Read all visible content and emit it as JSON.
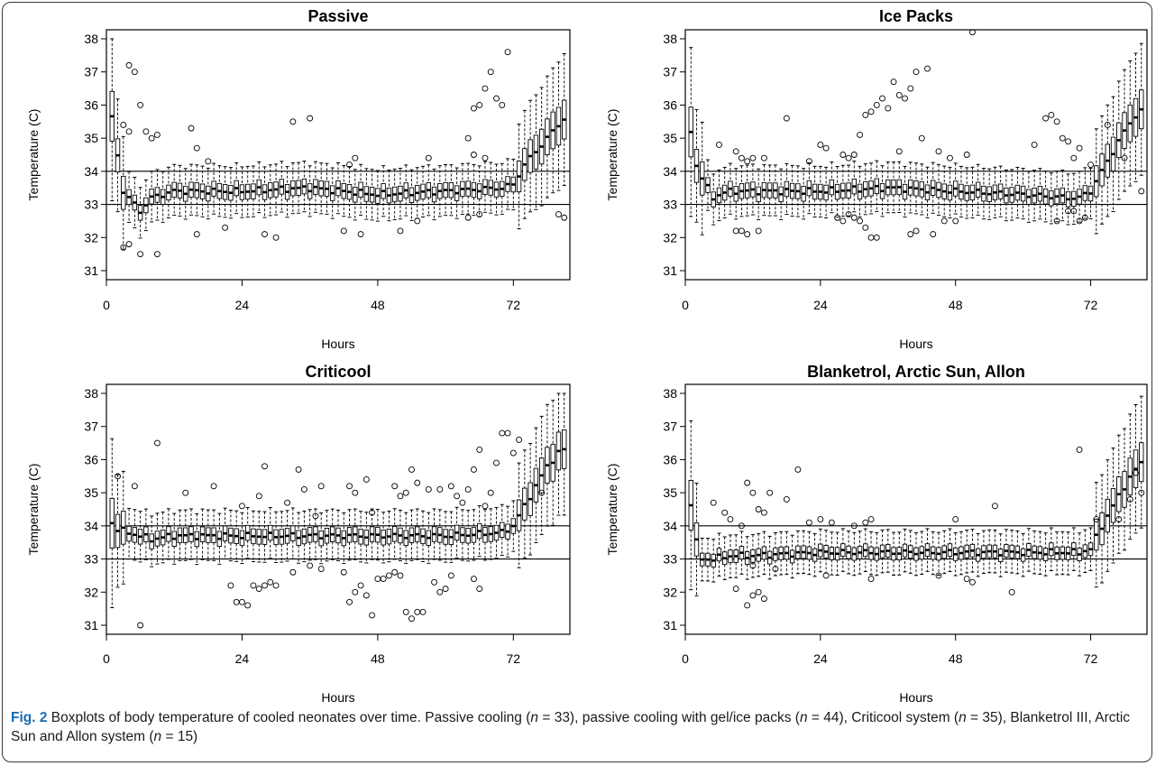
{
  "figure": {
    "fig_label": "Fig. 2",
    "caption_parts": [
      " Boxplots of body temperature of cooled neonates over time. Passive cooling (",
      "n",
      " = 33), passive cooling with gel/ice packs (",
      "n",
      " = 44), Criticool system (",
      "n",
      " = 35), Blanketrol III, Arctic Sun and Allon system (",
      "n",
      " = 15)"
    ]
  },
  "chart_data": [
    {
      "type": "box",
      "title": "Passive",
      "xlabel": "Hours",
      "ylabel": "Temperature (C)",
      "xlim": [
        0,
        82
      ],
      "ylim": [
        31,
        38
      ],
      "xticks": [
        0,
        24,
        48,
        72
      ],
      "yticks": [
        31,
        32,
        33,
        34,
        35,
        36,
        37,
        38
      ],
      "reference_lines": [
        33,
        34
      ],
      "hours": "1-81",
      "median_key": [
        [
          1,
          35.6
        ],
        [
          2,
          34.5
        ],
        [
          3,
          33.4
        ],
        [
          4,
          33.2
        ],
        [
          5,
          33.0
        ],
        [
          6,
          32.8
        ],
        [
          8,
          33.2
        ],
        [
          12,
          33.4
        ],
        [
          24,
          33.4
        ],
        [
          36,
          33.5
        ],
        [
          48,
          33.3
        ],
        [
          60,
          33.4
        ],
        [
          70,
          33.5
        ],
        [
          72,
          33.6
        ],
        [
          74,
          34.2
        ],
        [
          76,
          34.6
        ],
        [
          78,
          35.0
        ],
        [
          80,
          35.4
        ],
        [
          81,
          35.6
        ]
      ],
      "outliers": [
        [
          3,
          35.4
        ],
        [
          4,
          37.2
        ],
        [
          5,
          37.0
        ],
        [
          6,
          36.0
        ],
        [
          4,
          35.2
        ],
        [
          7,
          35.2
        ],
        [
          8,
          35.0
        ],
        [
          9,
          35.1
        ],
        [
          3,
          31.7
        ],
        [
          4,
          31.8
        ],
        [
          6,
          31.5
        ],
        [
          9,
          31.5
        ],
        [
          15,
          35.3
        ],
        [
          16,
          34.7
        ],
        [
          18,
          34.3
        ],
        [
          16,
          32.1
        ],
        [
          21,
          32.3
        ],
        [
          28,
          32.1
        ],
        [
          30,
          32.0
        ],
        [
          33,
          35.5
        ],
        [
          36,
          35.6
        ],
        [
          43,
          34.2
        ],
        [
          44,
          34.4
        ],
        [
          42,
          32.2
        ],
        [
          45,
          32.1
        ],
        [
          52,
          32.2
        ],
        [
          55,
          32.5
        ],
        [
          57,
          34.4
        ],
        [
          64,
          35.0
        ],
        [
          65,
          35.9
        ],
        [
          66,
          36.0
        ],
        [
          67,
          36.5
        ],
        [
          68,
          37.0
        ],
        [
          69,
          36.2
        ],
        [
          70,
          36.0
        ],
        [
          71,
          37.6
        ],
        [
          65,
          34.5
        ],
        [
          67,
          34.4
        ],
        [
          64,
          32.6
        ],
        [
          66,
          32.7
        ],
        [
          80,
          32.7
        ],
        [
          81,
          32.6
        ]
      ]
    },
    {
      "type": "box",
      "title": "Ice Packs",
      "xlabel": "Hours",
      "ylabel": "Temperature (C)",
      "xlim": [
        0,
        82
      ],
      "ylim": [
        31,
        38
      ],
      "xticks": [
        0,
        24,
        48,
        72
      ],
      "yticks": [
        31,
        32,
        33,
        34,
        35,
        36,
        37,
        38
      ],
      "reference_lines": [
        33,
        34
      ],
      "hours": "1-81",
      "median_key": [
        [
          1,
          35.2
        ],
        [
          2,
          34.2
        ],
        [
          3,
          33.8
        ],
        [
          4,
          33.5
        ],
        [
          5,
          33.2
        ],
        [
          6,
          33.3
        ],
        [
          8,
          33.4
        ],
        [
          12,
          33.4
        ],
        [
          24,
          33.4
        ],
        [
          36,
          33.5
        ],
        [
          48,
          33.4
        ],
        [
          60,
          33.3
        ],
        [
          68,
          33.2
        ],
        [
          70,
          33.2
        ],
        [
          72,
          33.4
        ],
        [
          74,
          34.0
        ],
        [
          76,
          34.6
        ],
        [
          78,
          35.2
        ],
        [
          80,
          35.7
        ],
        [
          81,
          35.8
        ]
      ],
      "outliers": [
        [
          6,
          34.8
        ],
        [
          9,
          34.6
        ],
        [
          10,
          34.4
        ],
        [
          11,
          34.3
        ],
        [
          12,
          34.4
        ],
        [
          14,
          34.4
        ],
        [
          9,
          32.2
        ],
        [
          10,
          32.2
        ],
        [
          11,
          32.1
        ],
        [
          13,
          32.2
        ],
        [
          18,
          35.6
        ],
        [
          24,
          34.8
        ],
        [
          25,
          34.7
        ],
        [
          22,
          34.3
        ],
        [
          28,
          34.5
        ],
        [
          29,
          34.4
        ],
        [
          30,
          34.5
        ],
        [
          27,
          32.6
        ],
        [
          28,
          32.5
        ],
        [
          29,
          32.7
        ],
        [
          30,
          32.6
        ],
        [
          31,
          32.5
        ],
        [
          32,
          32.3
        ],
        [
          33,
          32.0
        ],
        [
          34,
          32.0
        ],
        [
          31,
          35.1
        ],
        [
          32,
          35.7
        ],
        [
          33,
          35.8
        ],
        [
          34,
          36.0
        ],
        [
          35,
          36.2
        ],
        [
          36,
          35.9
        ],
        [
          37,
          36.7
        ],
        [
          38,
          36.3
        ],
        [
          39,
          36.2
        ],
        [
          40,
          36.5
        ],
        [
          41,
          37.0
        ],
        [
          43,
          37.1
        ],
        [
          38,
          34.6
        ],
        [
          42,
          35.0
        ],
        [
          40,
          32.1
        ],
        [
          41,
          32.2
        ],
        [
          44,
          32.1
        ],
        [
          46,
          32.5
        ],
        [
          48,
          32.5
        ],
        [
          51,
          38.2
        ],
        [
          47,
          34.4
        ],
        [
          50,
          34.5
        ],
        [
          45,
          34.6
        ],
        [
          62,
          34.8
        ],
        [
          64,
          35.6
        ],
        [
          65,
          35.7
        ],
        [
          66,
          35.5
        ],
        [
          67,
          35.0
        ],
        [
          68,
          34.9
        ],
        [
          69,
          34.4
        ],
        [
          70,
          34.7
        ],
        [
          66,
          32.5
        ],
        [
          72,
          34.2
        ],
        [
          75,
          35.4
        ],
        [
          78,
          34.4
        ],
        [
          81,
          33.4
        ],
        [
          68,
          32.8
        ],
        [
          69,
          32.8
        ],
        [
          70,
          32.5
        ],
        [
          71,
          32.6
        ]
      ]
    },
    {
      "type": "box",
      "title": "Criticool",
      "xlabel": "Hours",
      "ylabel": "Temperature (C)",
      "xlim": [
        0,
        82
      ],
      "ylim": [
        31,
        38
      ],
      "xticks": [
        0,
        24,
        48,
        72
      ],
      "yticks": [
        31,
        32,
        33,
        34,
        35,
        36,
        37,
        38
      ],
      "reference_lines": [
        33,
        34
      ],
      "hours": "1-81",
      "median_key": [
        [
          1,
          34.1
        ],
        [
          2,
          33.9
        ],
        [
          4,
          33.8
        ],
        [
          8,
          33.6
        ],
        [
          12,
          33.7
        ],
        [
          24,
          33.7
        ],
        [
          36,
          33.7
        ],
        [
          48,
          33.7
        ],
        [
          60,
          33.7
        ],
        [
          70,
          33.8
        ],
        [
          72,
          34.0
        ],
        [
          74,
          34.6
        ],
        [
          76,
          35.2
        ],
        [
          78,
          35.8
        ],
        [
          80,
          36.2
        ],
        [
          81,
          36.3
        ]
      ],
      "outliers": [
        [
          2,
          35.5
        ],
        [
          5,
          35.2
        ],
        [
          9,
          36.5
        ],
        [
          6,
          31.0
        ],
        [
          14,
          35.0
        ],
        [
          19,
          35.2
        ],
        [
          24,
          34.6
        ],
        [
          27,
          34.9
        ],
        [
          28,
          35.8
        ],
        [
          32,
          34.7
        ],
        [
          34,
          35.7
        ],
        [
          35,
          35.1
        ],
        [
          37,
          34.3
        ],
        [
          38,
          35.2
        ],
        [
          43,
          35.2
        ],
        [
          44,
          35.0
        ],
        [
          46,
          35.4
        ],
        [
          47,
          34.4
        ],
        [
          51,
          35.2
        ],
        [
          52,
          34.9
        ],
        [
          53,
          35.0
        ],
        [
          54,
          35.7
        ],
        [
          55,
          35.3
        ],
        [
          57,
          35.1
        ],
        [
          59,
          35.1
        ],
        [
          61,
          35.2
        ],
        [
          62,
          34.9
        ],
        [
          63,
          34.7
        ],
        [
          64,
          35.1
        ],
        [
          65,
          35.7
        ],
        [
          66,
          36.3
        ],
        [
          67,
          34.6
        ],
        [
          68,
          35.0
        ],
        [
          69,
          35.9
        ],
        [
          70,
          36.8
        ],
        [
          71,
          36.8
        ],
        [
          72,
          36.2
        ],
        [
          73,
          36.6
        ],
        [
          22,
          32.2
        ],
        [
          23,
          31.7
        ],
        [
          24,
          31.7
        ],
        [
          25,
          31.6
        ],
        [
          26,
          32.2
        ],
        [
          27,
          32.1
        ],
        [
          28,
          32.2
        ],
        [
          29,
          32.3
        ],
        [
          30,
          32.2
        ],
        [
          33,
          32.6
        ],
        [
          36,
          32.8
        ],
        [
          38,
          32.7
        ],
        [
          42,
          32.6
        ],
        [
          43,
          31.7
        ],
        [
          44,
          32.0
        ],
        [
          45,
          32.2
        ],
        [
          46,
          31.9
        ],
        [
          47,
          31.3
        ],
        [
          48,
          32.4
        ],
        [
          49,
          32.4
        ],
        [
          50,
          32.5
        ],
        [
          51,
          32.6
        ],
        [
          52,
          32.5
        ],
        [
          53,
          31.4
        ],
        [
          54,
          31.2
        ],
        [
          55,
          31.4
        ],
        [
          56,
          31.4
        ],
        [
          58,
          32.3
        ],
        [
          59,
          32.0
        ],
        [
          60,
          32.1
        ],
        [
          61,
          32.5
        ],
        [
          65,
          32.4
        ],
        [
          66,
          32.1
        ],
        [
          77,
          35.0
        ]
      ]
    },
    {
      "type": "box",
      "title": "Blanketrol, Arctic Sun, Allon",
      "xlabel": "Hours",
      "ylabel": "Temperature (C)",
      "xlim": [
        0,
        82
      ],
      "ylim": [
        31,
        38
      ],
      "xticks": [
        0,
        24,
        48,
        72
      ],
      "yticks": [
        31,
        32,
        33,
        34,
        35,
        36,
        37,
        38
      ],
      "reference_lines": [
        33,
        34
      ],
      "hours": "1-81",
      "median_key": [
        [
          1,
          34.7
        ],
        [
          2,
          33.5
        ],
        [
          3,
          33.0
        ],
        [
          5,
          33.0
        ],
        [
          8,
          33.1
        ],
        [
          12,
          33.1
        ],
        [
          24,
          33.2
        ],
        [
          36,
          33.2
        ],
        [
          48,
          33.2
        ],
        [
          60,
          33.2
        ],
        [
          70,
          33.2
        ],
        [
          72,
          33.3
        ],
        [
          74,
          34.0
        ],
        [
          76,
          34.6
        ],
        [
          78,
          35.2
        ],
        [
          80,
          35.7
        ],
        [
          81,
          35.9
        ]
      ],
      "outliers": [
        [
          5,
          34.7
        ],
        [
          7,
          34.4
        ],
        [
          8,
          34.2
        ],
        [
          10,
          34.0
        ],
        [
          11,
          35.3
        ],
        [
          12,
          35.0
        ],
        [
          13,
          34.5
        ],
        [
          14,
          34.4
        ],
        [
          15,
          35.0
        ],
        [
          18,
          34.8
        ],
        [
          20,
          35.7
        ],
        [
          22,
          34.1
        ],
        [
          24,
          34.2
        ],
        [
          26,
          34.1
        ],
        [
          30,
          34.0
        ],
        [
          32,
          34.1
        ],
        [
          33,
          34.2
        ],
        [
          48,
          34.2
        ],
        [
          55,
          34.6
        ],
        [
          70,
          36.3
        ],
        [
          73,
          34.2
        ],
        [
          77,
          34.2
        ],
        [
          79,
          34.8
        ],
        [
          80,
          35.6
        ],
        [
          81,
          35.0
        ],
        [
          9,
          32.1
        ],
        [
          11,
          31.6
        ],
        [
          12,
          31.9
        ],
        [
          13,
          32.0
        ],
        [
          14,
          31.8
        ],
        [
          25,
          32.5
        ],
        [
          33,
          32.4
        ],
        [
          45,
          32.5
        ],
        [
          50,
          32.4
        ],
        [
          51,
          32.3
        ],
        [
          58,
          32.0
        ],
        [
          12,
          32.8
        ],
        [
          16,
          32.7
        ]
      ]
    }
  ]
}
